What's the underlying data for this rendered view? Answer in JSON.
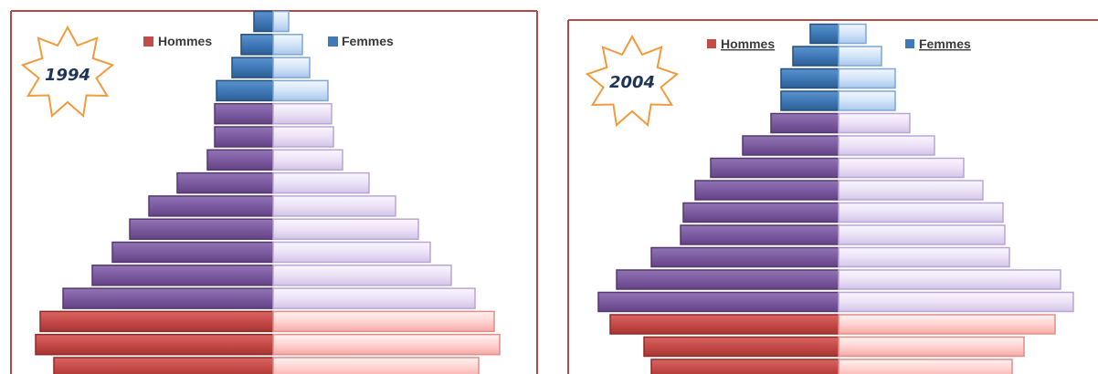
{
  "colors": {
    "frame_left": "#b04a46",
    "frame_right": "#b84b47",
    "young": "#c54a48",
    "young_light": "#ffc9c6",
    "middle": "#7c5aa0",
    "middle_light": "#e6dcf3",
    "old": "#3f79b7",
    "old_light": "#c6dcf5",
    "star": "#f29a3c",
    "text": "#3b3b3b",
    "year_text": "#1d3557"
  },
  "chart_data": [
    {
      "type": "bar",
      "orientation": "horizontal",
      "title": "1994",
      "legend": [
        "Hommes",
        "Femmes"
      ],
      "legend_position": "top",
      "note": "Bars listed from bottom (youngest group) to top (oldest group); partially cropped",
      "series": [
        {
          "name": "Hommes",
          "values": [
            240,
            260,
            255,
            230,
            198,
            176,
            157,
            136,
            105,
            72,
            64,
            64,
            62,
            45,
            35,
            21
          ]
        },
        {
          "name": "Femmes",
          "values": [
            225,
            248,
            242,
            221,
            195,
            172,
            159,
            134,
            105,
            76,
            66,
            64,
            60,
            40,
            32,
            17
          ]
        }
      ],
      "xlim": [
        0,
        280
      ]
    },
    {
      "type": "bar",
      "orientation": "horizontal",
      "title": "2004",
      "legend": [
        "Hommes",
        "Femmes"
      ],
      "legend_position": "top",
      "note": "Bars listed from bottom (youngest group) to top (oldest group); partially cropped",
      "series": [
        {
          "name": "Hommes",
          "values": [
            205,
            213,
            250,
            263,
            243,
            205,
            173,
            170,
            157,
            140,
            105,
            74,
            63,
            63,
            50,
            31
          ]
        },
        {
          "name": "Femmes",
          "values": [
            190,
            203,
            237,
            257,
            243,
            187,
            182,
            180,
            158,
            137,
            105,
            78,
            62,
            62,
            47,
            30
          ]
        }
      ],
      "xlim": [
        0,
        280
      ]
    }
  ]
}
